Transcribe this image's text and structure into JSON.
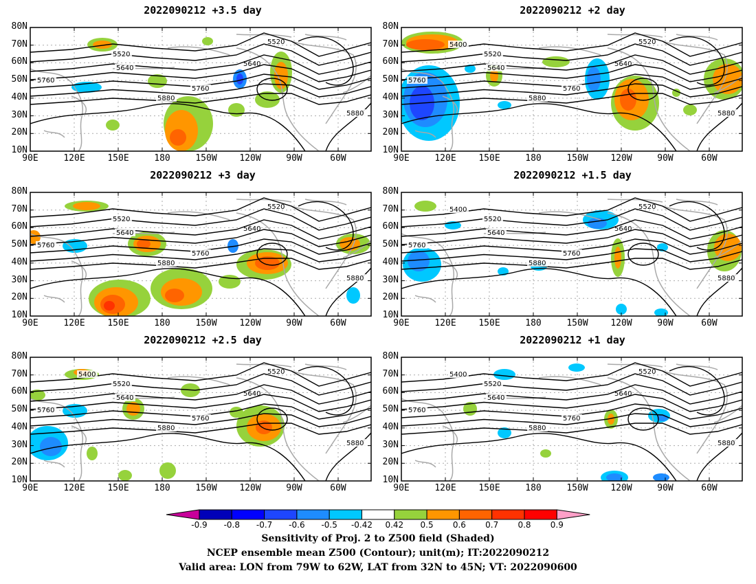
{
  "panels": [
    {
      "id": "p1",
      "title": "2022090212 +3.5 day"
    },
    {
      "id": "p2",
      "title": "2022090212 +2 day"
    },
    {
      "id": "p3",
      "title": "2022090212 +3 day"
    },
    {
      "id": "p4",
      "title": "2022090212 +1.5 day"
    },
    {
      "id": "p5",
      "title": "2022090212 +2.5 day"
    },
    {
      "id": "p6",
      "title": "2022090212 +1 day"
    }
  ],
  "axes": {
    "y_ticks": [
      "80N",
      "70N",
      "60N",
      "50N",
      "40N",
      "30N",
      "20N",
      "10N"
    ],
    "x_ticks": [
      "90E",
      "120E",
      "150E",
      "180",
      "150W",
      "120W",
      "90W",
      "60W"
    ]
  },
  "contour_labels": [
    "5400",
    "5520",
    "5640",
    "5760",
    "5880"
  ],
  "colorbar": {
    "labels": [
      "-0.9",
      "-0.8",
      "-0.7",
      "-0.6",
      "-0.5",
      "-0.42",
      "0.42",
      "0.5",
      "0.6",
      "0.7",
      "0.8",
      "0.9"
    ],
    "colors": [
      "#c8009a",
      "#0000b8",
      "#0000ff",
      "#1e46ff",
      "#1e8cff",
      "#00c8ff",
      "#ffffff",
      "#96d23c",
      "#ff9600",
      "#ff6400",
      "#ff3200",
      "#ff0000",
      "#ffa0c8"
    ]
  },
  "captions": [
    "Sensitivity of Proj. 2 to Z500 field (Shaded)",
    "NCEP ensemble mean Z500 (Contour); unit(m); IT:2022090212",
    "Valid area: LON from 79W to 62W, LAT from 32N to 45N; VT: 2022090600"
  ]
}
